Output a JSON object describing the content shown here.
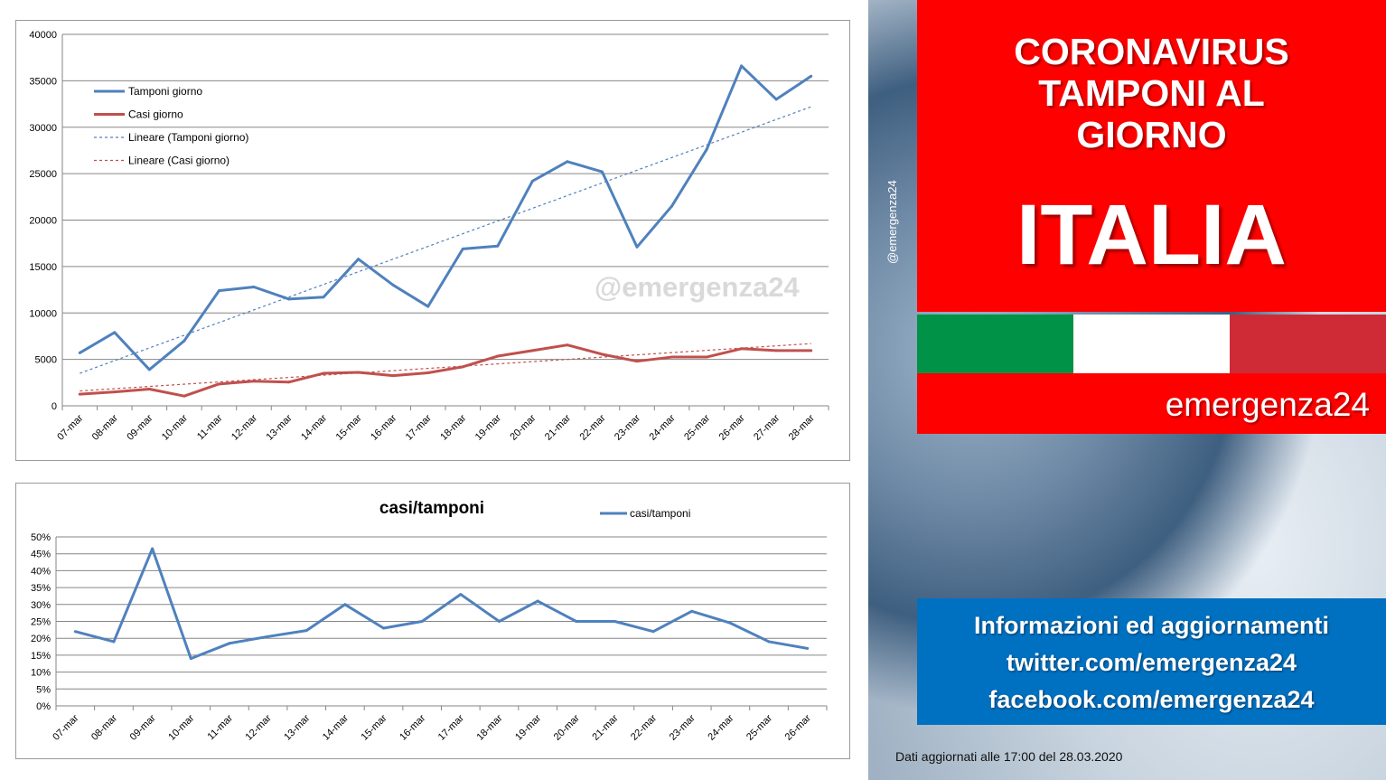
{
  "watermark": "@emergenza24",
  "photo_handle": "@emergenza24",
  "panel": {
    "title_lines": [
      "CORONAVIRUS",
      "TAMPONI AL",
      "GIORNO"
    ],
    "country": "ITALIA",
    "brand": "emergenza24",
    "flag_colors": [
      "#009246",
      "#ffffff",
      "#ce2b37"
    ],
    "panel_color": "#ff0000"
  },
  "info": {
    "line1": "Informazioni ed aggiornamenti",
    "line2": "twitter.com/emergenza24",
    "line3": "facebook.com/emergenza24",
    "color": "#0070c0"
  },
  "updated": "Dati aggiornati alle 17:00 del 28.03.2020",
  "chart_data": [
    {
      "type": "line",
      "title": "",
      "categories": [
        "07-mar",
        "08-mar",
        "09-mar",
        "10-mar",
        "11-mar",
        "12-mar",
        "13-mar",
        "14-mar",
        "15-mar",
        "16-mar",
        "17-mar",
        "18-mar",
        "19-mar",
        "20-mar",
        "21-mar",
        "22-mar",
        "23-mar",
        "24-mar",
        "25-mar",
        "26-mar",
        "27-mar",
        "28-mar"
      ],
      "ylim": [
        0,
        40000
      ],
      "yticks": [
        "0",
        "5000",
        "10000",
        "15000",
        "20000",
        "25000",
        "30000",
        "35000",
        "40000"
      ],
      "grid": true,
      "legend_position": "top-left",
      "series": [
        {
          "name": "Tamponi giorno",
          "color": "#4f81bd",
          "values": [
            5700,
            7900,
            3900,
            7000,
            12400,
            12800,
            11500,
            11700,
            15800,
            13000,
            10700,
            16900,
            17200,
            24200,
            26300,
            25200,
            17100,
            21500,
            27600,
            36600,
            33000,
            35500
          ]
        },
        {
          "name": "Casi giorno",
          "color": "#c0504d",
          "values": [
            1250,
            1500,
            1800,
            1050,
            2350,
            2650,
            2550,
            3500,
            3600,
            3250,
            3550,
            4200,
            5350,
            5950,
            6550,
            5550,
            4800,
            5250,
            5250,
            6150,
            5950,
            5950
          ]
        }
      ],
      "trendlines": [
        {
          "name": "Lineare (Tamponi giorno)",
          "color": "#4f81bd",
          "values": [
            3500,
            32200
          ]
        },
        {
          "name": "Lineare (Casi giorno)",
          "color": "#c0504d",
          "values": [
            1600,
            6700
          ]
        }
      ]
    },
    {
      "type": "line",
      "title": "casi/tamponi",
      "categories": [
        "07-mar",
        "08-mar",
        "09-mar",
        "10-mar",
        "11-mar",
        "12-mar",
        "13-mar",
        "14-mar",
        "15-mar",
        "16-mar",
        "17-mar",
        "18-mar",
        "19-mar",
        "20-mar",
        "21-mar",
        "22-mar",
        "23-mar",
        "24-mar",
        "25-mar",
        "26-mar"
      ],
      "ylim": [
        0,
        50
      ],
      "yticks": [
        "0%",
        "5%",
        "10%",
        "15%",
        "20%",
        "25%",
        "30%",
        "35%",
        "40%",
        "45%",
        "50%"
      ],
      "grid": true,
      "legend_position": "top-right",
      "series": [
        {
          "name": "casi/tamponi",
          "color": "#4f81bd",
          "values": [
            22,
            19,
            46.5,
            14,
            18.5,
            20.5,
            22.3,
            30,
            23,
            25,
            33,
            25,
            31,
            25,
            25,
            22,
            28,
            24.5,
            19,
            17
          ]
        }
      ]
    }
  ]
}
